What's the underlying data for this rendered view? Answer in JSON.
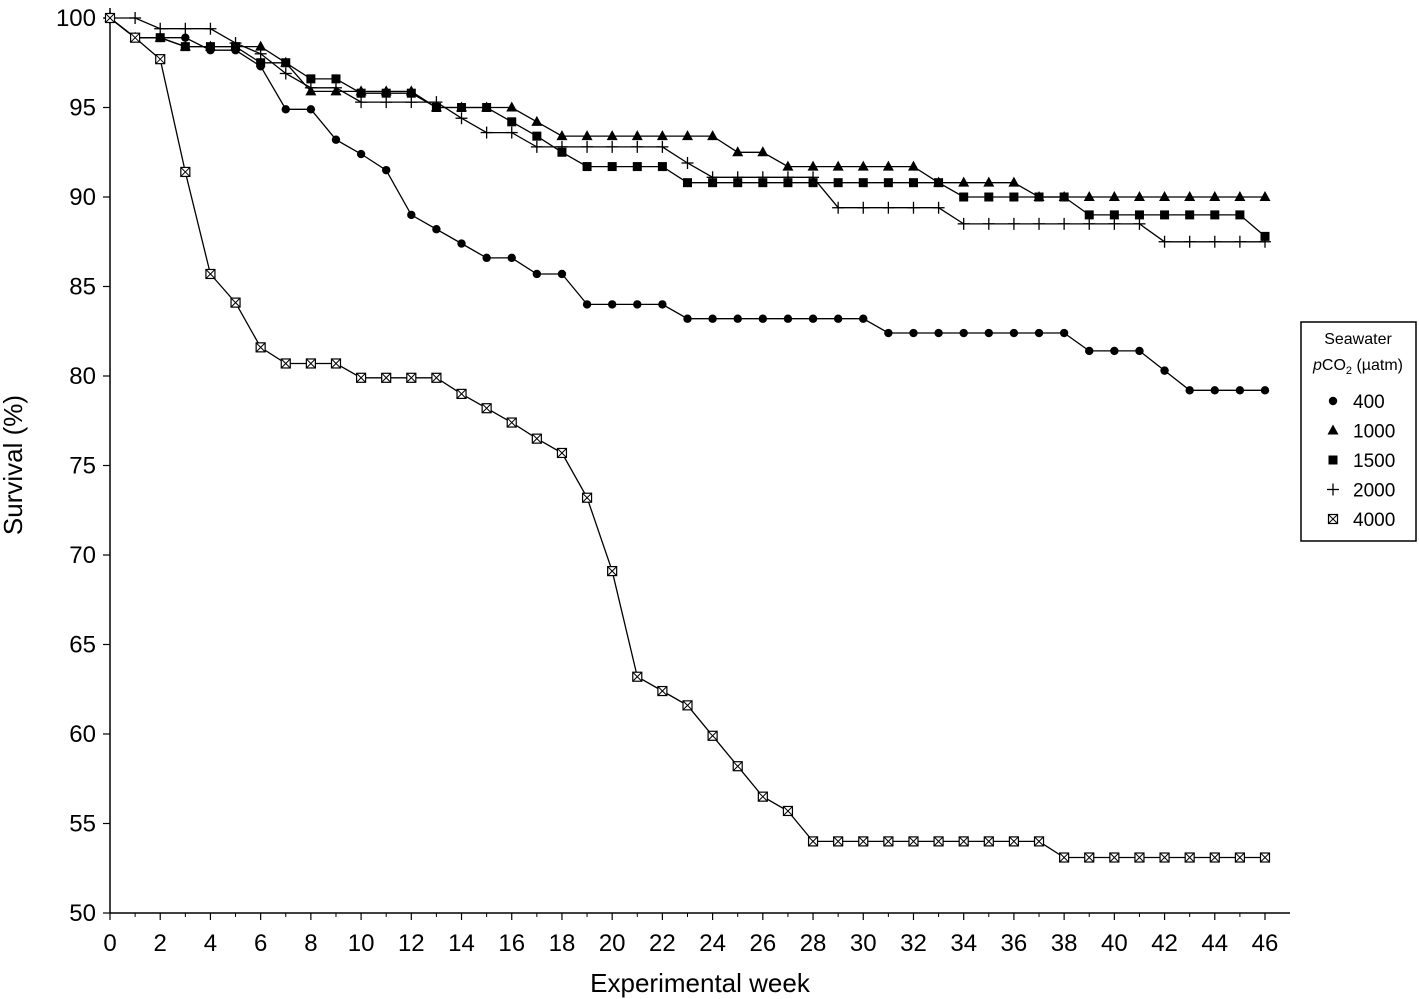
{
  "chart_data": {
    "type": "line",
    "title": "",
    "xlabel": "Experimental week",
    "ylabel": "Survival (%)",
    "xlim": [
      0,
      46
    ],
    "ylim": [
      50,
      100
    ],
    "xticks": [
      0,
      2,
      4,
      6,
      8,
      10,
      12,
      14,
      16,
      18,
      20,
      22,
      24,
      26,
      28,
      30,
      32,
      34,
      36,
      38,
      40,
      42,
      44,
      46
    ],
    "yticks": [
      50,
      55,
      60,
      65,
      70,
      75,
      80,
      85,
      90,
      95,
      100
    ],
    "grid": false,
    "legend": {
      "placement": "right",
      "title_line1": "Seawater",
      "title_line2_italic": "p",
      "title_line2_rest": "CO",
      "title_line2_sub": "2",
      "title_line2_unit": " (µatm)"
    },
    "series": [
      {
        "name": "400",
        "marker": "circle",
        "x": [
          0,
          1,
          2,
          3,
          4,
          5,
          6,
          7,
          8,
          9,
          10,
          11,
          12,
          13,
          14,
          15,
          16,
          17,
          18,
          19,
          20,
          21,
          22,
          23,
          24,
          25,
          26,
          27,
          28,
          29,
          30,
          31,
          32,
          33,
          34,
          35,
          36,
          37,
          38,
          39,
          40,
          41,
          42,
          43,
          44,
          45,
          46
        ],
        "y": [
          100,
          98.9,
          98.9,
          98.9,
          98.2,
          98.2,
          97.3,
          94.9,
          94.9,
          93.2,
          92.4,
          91.5,
          89.0,
          88.2,
          87.4,
          86.6,
          86.6,
          85.7,
          85.7,
          84.0,
          84.0,
          84.0,
          84.0,
          83.2,
          83.2,
          83.2,
          83.2,
          83.2,
          83.2,
          83.2,
          83.2,
          82.4,
          82.4,
          82.4,
          82.4,
          82.4,
          82.4,
          82.4,
          82.4,
          81.4,
          81.4,
          81.4,
          80.3,
          79.2,
          79.2,
          79.2,
          79.2
        ]
      },
      {
        "name": "1000",
        "marker": "triangle",
        "x": [
          0,
          1,
          2,
          3,
          4,
          5,
          6,
          7,
          8,
          9,
          10,
          11,
          12,
          13,
          14,
          15,
          16,
          17,
          18,
          19,
          20,
          21,
          22,
          23,
          24,
          25,
          26,
          27,
          28,
          29,
          30,
          31,
          32,
          33,
          34,
          35,
          36,
          37,
          38,
          39,
          40,
          41,
          42,
          43,
          44,
          45,
          46
        ],
        "y": [
          100,
          98.9,
          98.9,
          98.4,
          98.4,
          98.4,
          98.4,
          97.5,
          95.9,
          95.9,
          95.9,
          95.9,
          95.9,
          95.0,
          95.0,
          95.0,
          95.0,
          94.2,
          93.4,
          93.4,
          93.4,
          93.4,
          93.4,
          93.4,
          93.4,
          92.5,
          92.5,
          91.7,
          91.7,
          91.7,
          91.7,
          91.7,
          91.7,
          90.8,
          90.8,
          90.8,
          90.8,
          90.0,
          90.0,
          90.0,
          90.0,
          90.0,
          90.0,
          90.0,
          90.0,
          90.0,
          90.0
        ]
      },
      {
        "name": "1500",
        "marker": "square",
        "x": [
          0,
          1,
          2,
          3,
          4,
          5,
          6,
          7,
          8,
          9,
          10,
          11,
          12,
          13,
          14,
          15,
          16,
          17,
          18,
          19,
          20,
          21,
          22,
          23,
          24,
          25,
          26,
          27,
          28,
          29,
          30,
          31,
          32,
          33,
          34,
          35,
          36,
          37,
          38,
          39,
          40,
          41,
          42,
          43,
          44,
          45,
          46
        ],
        "y": [
          100,
          98.9,
          98.9,
          98.4,
          98.4,
          98.4,
          97.5,
          97.5,
          96.6,
          96.6,
          95.8,
          95.8,
          95.8,
          95.0,
          95.0,
          95.0,
          94.2,
          93.4,
          92.5,
          91.7,
          91.7,
          91.7,
          91.7,
          90.8,
          90.8,
          90.8,
          90.8,
          90.8,
          90.8,
          90.8,
          90.8,
          90.8,
          90.8,
          90.8,
          90.0,
          90.0,
          90.0,
          90.0,
          90.0,
          89.0,
          89.0,
          89.0,
          89.0,
          89.0,
          89.0,
          89.0,
          87.8
        ]
      },
      {
        "name": "2000",
        "marker": "plus",
        "x": [
          0,
          1,
          2,
          3,
          4,
          5,
          6,
          7,
          8,
          9,
          10,
          11,
          12,
          13,
          14,
          15,
          16,
          17,
          18,
          19,
          20,
          21,
          22,
          23,
          24,
          25,
          26,
          27,
          28,
          29,
          30,
          31,
          32,
          33,
          34,
          35,
          36,
          37,
          38,
          39,
          40,
          41,
          42,
          43,
          44,
          45,
          46
        ],
        "y": [
          100,
          100,
          99.4,
          99.4,
          99.4,
          98.6,
          98.0,
          96.9,
          96.1,
          96.1,
          95.3,
          95.3,
          95.3,
          95.3,
          94.4,
          93.6,
          93.6,
          92.8,
          92.8,
          92.8,
          92.8,
          92.8,
          92.8,
          91.9,
          91.1,
          91.1,
          91.1,
          91.1,
          91.1,
          89.4,
          89.4,
          89.4,
          89.4,
          89.4,
          88.5,
          88.5,
          88.5,
          88.5,
          88.5,
          88.5,
          88.5,
          88.5,
          87.5,
          87.5,
          87.5,
          87.5,
          87.5
        ]
      },
      {
        "name": "4000",
        "marker": "crossed-square",
        "x": [
          0,
          1,
          2,
          3,
          4,
          5,
          6,
          7,
          8,
          9,
          10,
          11,
          12,
          13,
          14,
          15,
          16,
          17,
          18,
          19,
          20,
          21,
          22,
          23,
          24,
          25,
          26,
          27,
          28,
          29,
          30,
          31,
          32,
          33,
          34,
          35,
          36,
          37,
          38,
          39,
          40,
          41,
          42,
          43,
          44,
          45,
          46
        ],
        "y": [
          100,
          98.9,
          97.7,
          91.4,
          85.7,
          84.1,
          81.6,
          80.7,
          80.7,
          80.7,
          79.9,
          79.9,
          79.9,
          79.9,
          79.0,
          78.2,
          77.4,
          76.5,
          75.7,
          73.2,
          69.1,
          63.2,
          62.4,
          61.6,
          59.9,
          58.2,
          56.5,
          55.7,
          54.0,
          54.0,
          54.0,
          54.0,
          54.0,
          54.0,
          54.0,
          54.0,
          54.0,
          54.0,
          53.1,
          53.1,
          53.1,
          53.1,
          53.1,
          53.1,
          53.1,
          53.1,
          53.1
        ]
      }
    ]
  }
}
